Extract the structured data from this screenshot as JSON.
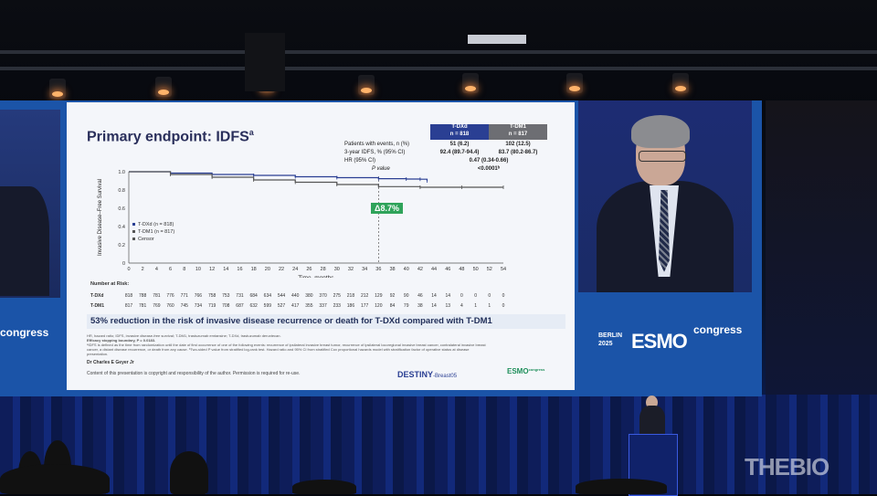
{
  "slide": {
    "title": "Primary endpoint: IDFS",
    "title_sup": "a",
    "table": {
      "headers": [
        {
          "name": "T-DXd",
          "n": "n = 818",
          "color": "#2a3f93"
        },
        {
          "name": "T-DM1",
          "n": "n = 817",
          "color": "#6d6e73"
        }
      ],
      "rows": [
        {
          "label": "Patients with events, n (%)",
          "a": "51 (6.2)",
          "b": "102 (12.5)"
        },
        {
          "label": "3-year IDFS, % (95% CI)",
          "a": "92.4 (89.7-94.4)",
          "b": "83.7 (80.2-86.7)"
        },
        {
          "label": "HR (95% CI)",
          "mid": "0.47 (0.34-0.66)"
        },
        {
          "label": "P value",
          "mid": "<0.0001ᵇ"
        }
      ]
    },
    "delta": "Δ8.7%",
    "banner": "53% reduction in the risk of invasive disease recurrence or death for T-DXd compared with T-DM1",
    "risk_title": "Number at Risk:",
    "risk_rows": [
      {
        "label": "T-DXd",
        "values": [
          "818",
          "788",
          "781",
          "776",
          "771",
          "766",
          "758",
          "753",
          "731",
          "684",
          "634",
          "544",
          "440",
          "380",
          "370",
          "275",
          "218",
          "212",
          "129",
          "92",
          "90",
          "46",
          "14",
          "14",
          "0",
          "0",
          "0",
          "0"
        ]
      },
      {
        "label": "T-DM1",
        "values": [
          "817",
          "781",
          "769",
          "760",
          "745",
          "734",
          "719",
          "708",
          "687",
          "632",
          "599",
          "527",
          "417",
          "355",
          "337",
          "233",
          "186",
          "177",
          "120",
          "84",
          "79",
          "38",
          "14",
          "13",
          "4",
          "1",
          "1",
          "0"
        ]
      }
    ],
    "footnote_1": "HR, hazard ratio; IDFS, invasive disease-free survival; T-DM1, trastuzumab emtansine; T-DXd, trastuzumab deruxtecan.",
    "footnote_2": "Efficacy stopping boundary, P = 0.0183.",
    "footnote_3": "ᵃIDFS is defined as the time from randomization until the date of first occurrence of one of the following events: recurrence of ipsilateral invasive breast tumor, recurrence of ipsilateral locoregional invasive breast cancer, contralateral invasive breast",
    "footnote_4": "cancer, a distant disease recurrence, or death from any cause. ᵇTwo-sided P value from stratified log-rank test. Hazard ratio and 95% CI from stratified Cox proportional hazards model with stratification factor of operative status at disease",
    "footnote_5": "presentation.",
    "presenter": "Dr Charles E Geyer Jr",
    "copyright": "Content of this presentation is copyright and responsibility of the author. Permission is required for re-use.",
    "logo_destiny": "DESTINY",
    "logo_destiny_suffix": "-Breast05",
    "logo_esmo_small": "ESMO",
    "logo_esmo_small_suffix": "congress"
  },
  "chart_data": {
    "type": "line",
    "ylabel": "Invasive Disease–Free Survival",
    "xlabel": "Time, months",
    "ylim": [
      0,
      1.0
    ],
    "yticks": [
      "0",
      "0.2",
      "0.4",
      "0.6",
      "0.8",
      "1.0"
    ],
    "xlim": [
      0,
      54
    ],
    "xticks": [
      "0",
      "2",
      "4",
      "6",
      "8",
      "10",
      "12",
      "14",
      "16",
      "18",
      "20",
      "22",
      "24",
      "26",
      "28",
      "30",
      "32",
      "34",
      "36",
      "38",
      "40",
      "42",
      "44",
      "46",
      "48",
      "50",
      "52",
      "54"
    ],
    "legend": [
      "T-DXd (n = 818)",
      "T-DM1 (n = 817)",
      "Censor"
    ],
    "series": [
      {
        "name": "T-DXd (n = 818)",
        "color": "#2a3f93",
        "x": [
          0,
          6,
          12,
          18,
          24,
          30,
          36,
          40,
          42,
          43
        ],
        "y": [
          1.0,
          0.985,
          0.97,
          0.96,
          0.945,
          0.935,
          0.924,
          0.92,
          0.918,
          0.9
        ]
      },
      {
        "name": "T-DM1 (n = 817)",
        "color": "#555555",
        "x": [
          0,
          6,
          12,
          18,
          24,
          30,
          36,
          42,
          48,
          54
        ],
        "y": [
          1.0,
          0.97,
          0.94,
          0.91,
          0.885,
          0.86,
          0.837,
          0.83,
          0.83,
          0.83
        ]
      }
    ],
    "marker_x": 36
  },
  "speaker_panel": {
    "city": "BERLIN",
    "year": "2025",
    "brand": "ESMO",
    "suffix": "congress"
  },
  "left_panel": {
    "text": "congress"
  },
  "watermark": "THEBIO"
}
